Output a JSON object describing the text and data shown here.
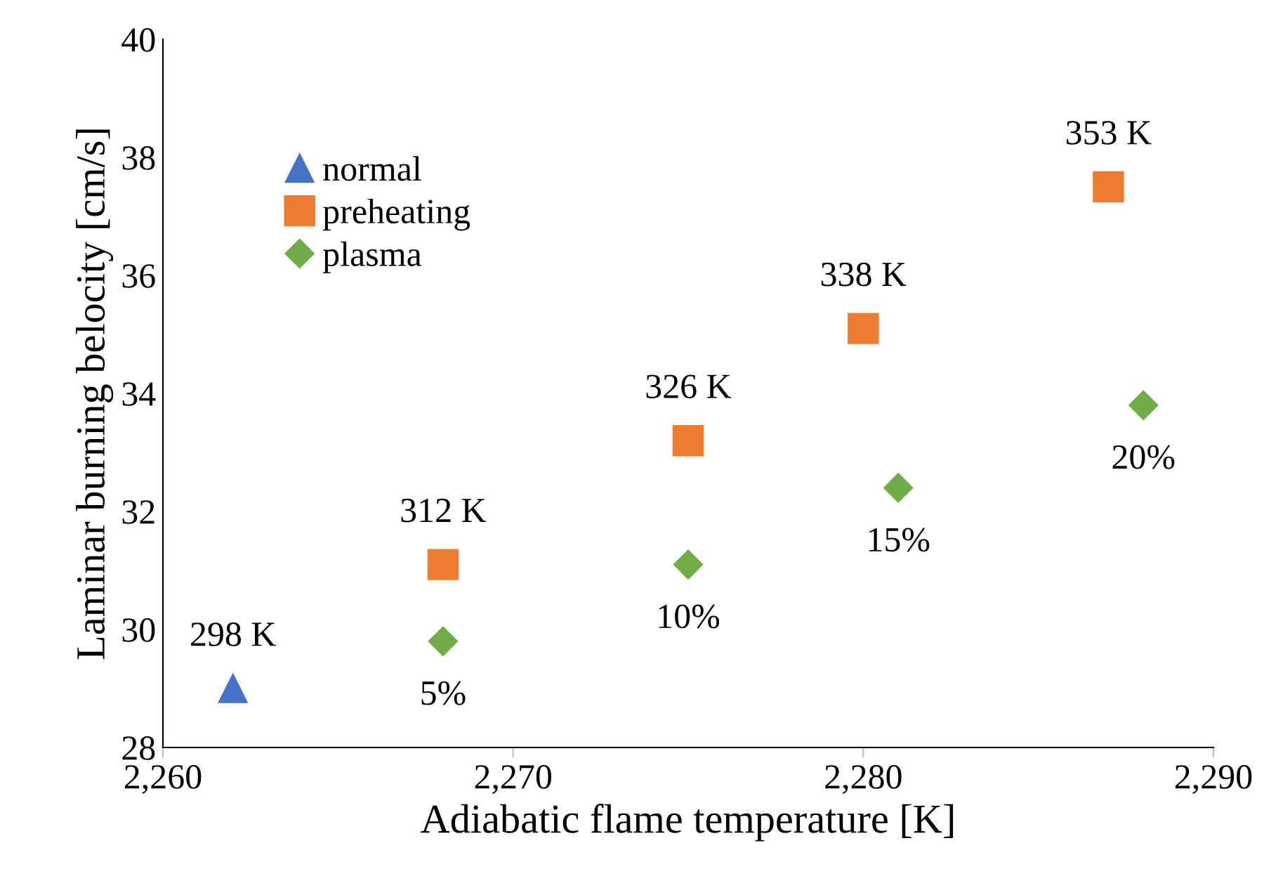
{
  "chart_data": {
    "type": "scatter",
    "xlabel": "Adiabatic flame temperature [K]",
    "ylabel": "Laminar burning belocity [cm/s]",
    "xlim": [
      2260,
      2290
    ],
    "xticks": [
      {
        "value": 2260,
        "label": "2,260"
      },
      {
        "value": 2270,
        "label": "2,270"
      },
      {
        "value": 2280,
        "label": "2,280"
      },
      {
        "value": 2290,
        "label": "2,290"
      }
    ],
    "ylim": [
      28,
      40
    ],
    "yticks": [
      28,
      30,
      32,
      34,
      36,
      38,
      40
    ],
    "grid": false,
    "legend": "top left",
    "series": [
      {
        "name": "normal",
        "color": "#4472c4",
        "marker": "triangle",
        "x": [
          2262
        ],
        "values": [
          29.0
        ]
      },
      {
        "name": "preheating",
        "color": "#ed7d31",
        "marker": "square",
        "x": [
          2268,
          2275,
          2280,
          2287
        ],
        "values": [
          31.1,
          33.2,
          35.1,
          37.5
        ]
      },
      {
        "name": "plasma",
        "color": "#70ad47",
        "marker": "diamond",
        "x": [
          2268,
          2275,
          2281,
          2288
        ],
        "values": [
          29.8,
          31.1,
          32.4,
          33.8
        ]
      }
    ],
    "annotations": [
      {
        "text": "298 K",
        "x": 2262,
        "y": 29.0
      },
      {
        "text": "312 K",
        "x": 2268,
        "y": 31.1
      },
      {
        "text": "326 K",
        "x": 2275,
        "y": 33.2
      },
      {
        "text": "338 K",
        "x": 2280,
        "y": 35.1
      },
      {
        "text": "353 K",
        "x": 2287,
        "y": 37.5
      },
      {
        "text": "5%",
        "x": 2268,
        "y": 29.8
      },
      {
        "text": "10%",
        "x": 2275,
        "y": 31.1
      },
      {
        "text": "15%",
        "x": 2281,
        "y": 32.4
      },
      {
        "text": "20%",
        "x": 2288,
        "y": 33.8
      }
    ]
  }
}
